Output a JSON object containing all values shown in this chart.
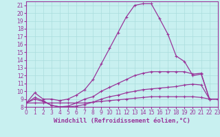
{
  "xlabel": "Windchill (Refroidissement éolien,°C)",
  "bg_color": "#c8f0f0",
  "line_color": "#993399",
  "grid_color": "#aadddd",
  "xlim": [
    0,
    23
  ],
  "ylim": [
    8,
    21.5
  ],
  "xticks": [
    0,
    1,
    2,
    3,
    4,
    5,
    6,
    7,
    8,
    9,
    10,
    11,
    12,
    13,
    14,
    15,
    16,
    17,
    18,
    19,
    20,
    21,
    22,
    23
  ],
  "yticks": [
    8,
    9,
    10,
    11,
    12,
    13,
    14,
    15,
    16,
    17,
    18,
    19,
    20,
    21
  ],
  "series": [
    [
      8.5,
      9.8,
      9.0,
      9.0,
      8.8,
      9.0,
      9.5,
      10.2,
      11.5,
      13.5,
      15.5,
      17.5,
      19.5,
      21.0,
      21.2,
      21.2,
      19.3,
      17.3,
      14.5,
      13.8,
      12.0,
      12.2,
      9.0,
      9.0
    ],
    [
      8.5,
      9.2,
      8.8,
      8.2,
      8.0,
      8.1,
      8.5,
      9.0,
      9.3,
      10.0,
      10.5,
      11.0,
      11.5,
      12.0,
      12.3,
      12.5,
      12.5,
      12.5,
      12.5,
      12.5,
      12.2,
      12.3,
      9.0,
      9.0
    ],
    [
      8.5,
      9.0,
      8.7,
      8.2,
      8.0,
      8.0,
      8.1,
      8.3,
      8.6,
      9.0,
      9.3,
      9.5,
      9.8,
      10.0,
      10.2,
      10.3,
      10.4,
      10.5,
      10.6,
      10.8,
      10.9,
      10.8,
      9.0,
      9.0
    ],
    [
      8.5,
      8.5,
      8.5,
      8.5,
      8.5,
      8.5,
      8.5,
      8.5,
      8.6,
      8.7,
      8.8,
      8.9,
      9.0,
      9.1,
      9.2,
      9.3,
      9.3,
      9.3,
      9.3,
      9.3,
      9.3,
      9.2,
      9.0,
      9.0
    ]
  ],
  "marker": "+",
  "markersize": 3,
  "linewidth": 0.9,
  "tick_fontsize": 5.5,
  "label_fontsize": 6.5
}
